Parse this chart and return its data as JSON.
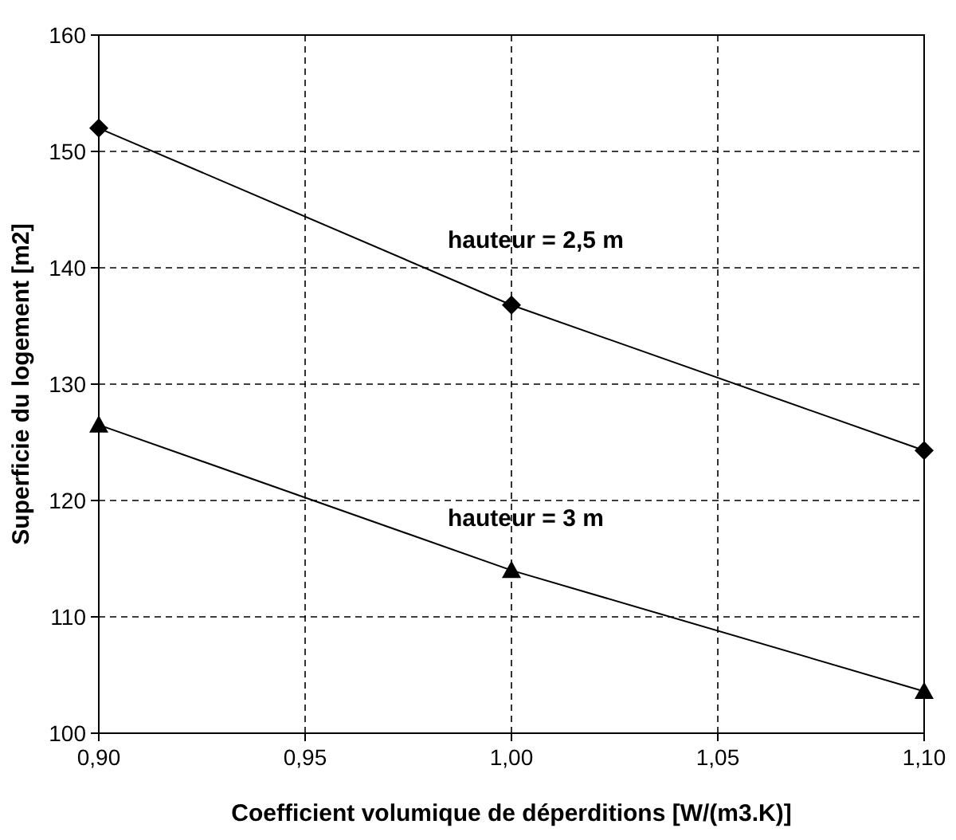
{
  "chart_data": {
    "type": "line",
    "xlabel": "Coefficient volumique de déperditions [W/(m3.K)]",
    "ylabel": "Superficie du logement [m2]",
    "x": [
      0.9,
      1.0,
      1.1
    ],
    "series": [
      {
        "name": "hauteur = 2,5 m",
        "color": "#000000",
        "marker": "diamond",
        "values": [
          152,
          136.8,
          124.3
        ]
      },
      {
        "name": "hauteur = 3 m",
        "color": "#000000",
        "marker": "triangle",
        "values": [
          126.5,
          114,
          103.6
        ]
      }
    ],
    "xlim": [
      0.9,
      1.1
    ],
    "xticks": [
      {
        "value": 0.9,
        "label": "0,90"
      },
      {
        "value": 0.95,
        "label": "0,95"
      },
      {
        "value": 1.0,
        "label": "1,00"
      },
      {
        "value": 1.05,
        "label": "1,05"
      },
      {
        "value": 1.1,
        "label": "1,10"
      }
    ],
    "ylim": [
      100,
      160
    ],
    "yticks": [
      100,
      110,
      120,
      130,
      140,
      150,
      160
    ],
    "grid": true,
    "line_style": "solid"
  }
}
